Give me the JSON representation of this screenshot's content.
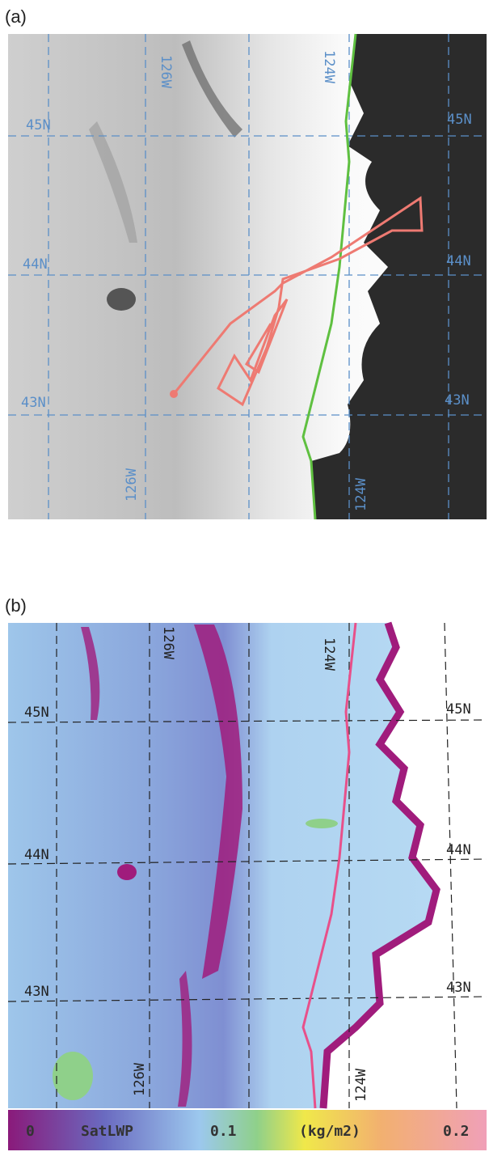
{
  "panels": [
    {
      "label": "(a)",
      "grid_labels": [
        "126W",
        "124W",
        "45N",
        "45N",
        "44N",
        "44N",
        "43N",
        "43N",
        "126W",
        "124W"
      ]
    },
    {
      "label": "(b)",
      "grid_labels": [
        "126W",
        "124W",
        "45N",
        "45N",
        "44N",
        "44N",
        "43N",
        "43N",
        "126W",
        "124W"
      ]
    }
  ],
  "colorbar": {
    "labels": [
      "0",
      "SatLWP",
      "0.1",
      "(kg/m2)",
      "0.2"
    ]
  }
}
